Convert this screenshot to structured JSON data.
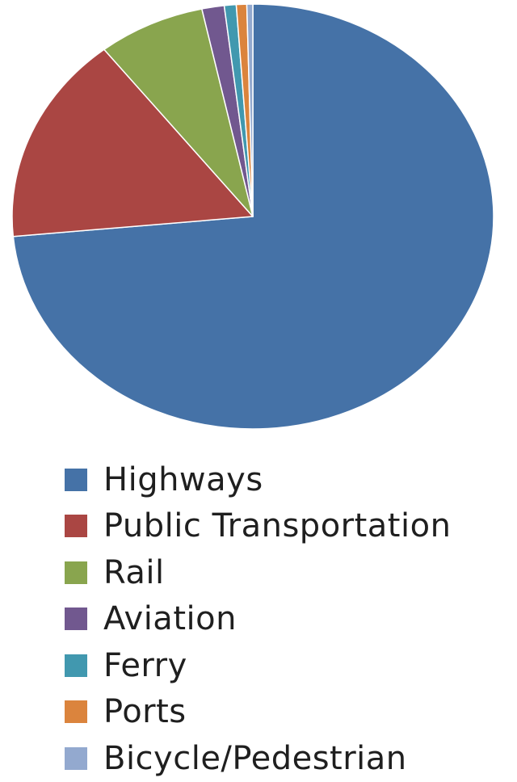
{
  "chart_data": {
    "type": "pie",
    "title": "",
    "legend_position": "bottom",
    "start_direction": "top",
    "slices": [
      {
        "label": "Highways",
        "value": 73.5,
        "color": "#4572A7"
      },
      {
        "label": "Public Transportation",
        "value": 15.9,
        "color": "#AA4643"
      },
      {
        "label": "Rail",
        "value": 7.2,
        "color": "#89A54E"
      },
      {
        "label": "Aviation",
        "value": 1.5,
        "color": "#71588F"
      },
      {
        "label": "Ferry",
        "value": 0.8,
        "color": "#4198AF"
      },
      {
        "label": "Ports",
        "value": 0.7,
        "color": "#DB843D"
      },
      {
        "label": "Bicycle/Pedestrian",
        "value": 0.4,
        "color": "#93A9CF"
      }
    ]
  }
}
